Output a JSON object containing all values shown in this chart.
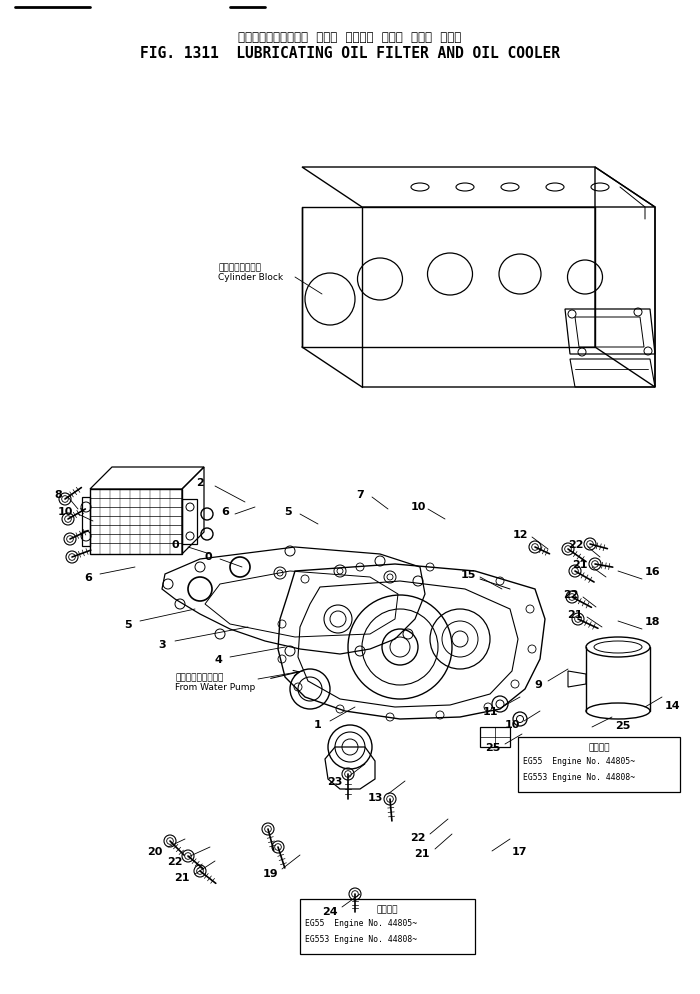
{
  "title_japanese": "ルーブリケーティング  オイル  フィルタ  および  オイル  クーラ",
  "title_english": "FIG. 1311  LUBRICATING OIL FILTER AND OIL COOLER",
  "title_fontsize_jp": 8.5,
  "title_fontsize_en": 10.5,
  "bg_color": "#ffffff",
  "line_color": "#000000",
  "fig_width": 7.0,
  "fig_height": 9.95,
  "dpi": 100,
  "label_cylinder_jp": "シリンタブロック",
  "label_cylinder_en": "Cylinder Block",
  "label_water_jp": "ウォータポンプから",
  "label_water_en": "From Water Pump",
  "note_box1_line0": "適用号機",
  "note_box1_line1": "EG55  Engine No. 44805~",
  "note_box1_line2": "EG553 Engine No. 44808~",
  "note_box2_line0": "適用号機",
  "note_box2_line1": "EG55  Engine No. 44805~",
  "note_box2_line2": "EG553 Engine No. 44808~"
}
